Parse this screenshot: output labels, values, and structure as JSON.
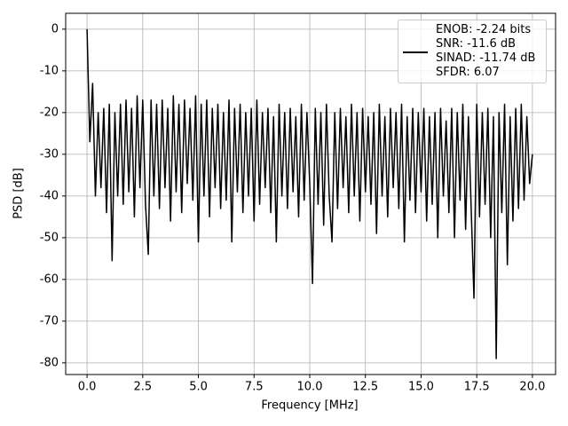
{
  "chart_data": {
    "type": "line",
    "xlabel": "Frequency [MHz]",
    "ylabel": "PSD [dB]",
    "x": [
      0,
      0.125,
      0.25,
      0.375,
      0.5,
      0.625,
      0.75,
      0.875,
      1,
      1.125,
      1.25,
      1.375,
      1.5,
      1.625,
      1.75,
      1.875,
      2,
      2.125,
      2.25,
      2.375,
      2.5,
      2.625,
      2.75,
      2.875,
      3,
      3.125,
      3.25,
      3.375,
      3.5,
      3.625,
      3.75,
      3.875,
      4,
      4.125,
      4.25,
      4.375,
      4.5,
      4.625,
      4.75,
      4.875,
      5,
      5.125,
      5.25,
      5.375,
      5.5,
      5.625,
      5.75,
      5.875,
      6,
      6.125,
      6.25,
      6.375,
      6.5,
      6.625,
      6.75,
      6.875,
      7,
      7.125,
      7.25,
      7.375,
      7.5,
      7.625,
      7.75,
      7.875,
      8,
      8.125,
      8.25,
      8.375,
      8.5,
      8.625,
      8.75,
      8.875,
      9,
      9.125,
      9.25,
      9.375,
      9.5,
      9.625,
      9.75,
      9.875,
      10,
      10.125,
      10.25,
      10.375,
      10.5,
      10.625,
      10.75,
      10.875,
      11,
      11.125,
      11.25,
      11.375,
      11.5,
      11.625,
      11.75,
      11.875,
      12,
      12.125,
      12.25,
      12.375,
      12.5,
      12.625,
      12.75,
      12.875,
      13,
      13.125,
      13.25,
      13.375,
      13.5,
      13.625,
      13.75,
      13.875,
      14,
      14.125,
      14.25,
      14.375,
      14.5,
      14.625,
      14.75,
      14.875,
      15,
      15.125,
      15.25,
      15.375,
      15.5,
      15.625,
      15.75,
      15.875,
      16,
      16.125,
      16.25,
      16.375,
      16.5,
      16.625,
      16.75,
      16.875,
      17,
      17.125,
      17.25,
      17.375,
      17.5,
      17.625,
      17.75,
      17.875,
      18,
      18.125,
      18.25,
      18.375,
      18.5,
      18.625,
      18.75,
      18.875,
      19,
      19.125,
      19.25,
      19.375,
      19.5,
      19.625,
      19.75,
      19.875,
      20
    ],
    "series": [
      {
        "name": "ENOB: -2.24 bits\nSNR: -11.6 dB\nSINAD: -11.74 dB\nSFDR: 6.07",
        "color": "#000000",
        "values": [
          0,
          -27,
          -13,
          -40,
          -20,
          -38,
          -19,
          -44,
          -18,
          -55.5,
          -20,
          -40,
          -18,
          -42,
          -17,
          -39,
          -19,
          -45,
          -16,
          -38,
          -17,
          -42,
          -54,
          -17,
          -40,
          -18,
          -43,
          -17,
          -38,
          -19,
          -46,
          -16,
          -39,
          -18,
          -44,
          -17,
          -37,
          -19,
          -41,
          -16,
          -51,
          -18,
          -40,
          -17,
          -45,
          -19,
          -38,
          -18,
          -43,
          -20,
          -41,
          -17,
          -51,
          -19,
          -39,
          -18,
          -44,
          -20,
          -40,
          -19,
          -46,
          -17,
          -42,
          -20,
          -38,
          -19,
          -44,
          -21,
          -51,
          -18,
          -40,
          -20,
          -43,
          -19,
          -39,
          -21,
          -45,
          -18,
          -41,
          -20,
          -37,
          -61,
          -19,
          -42,
          -20,
          -47,
          -18,
          -40,
          -51,
          -20,
          -43,
          -19,
          -38,
          -21,
          -44,
          -18,
          -40,
          -20,
          -46,
          -19,
          -39,
          -21,
          -42,
          -20,
          -49,
          -18,
          -40,
          -21,
          -45,
          -19,
          -38,
          -20,
          -43,
          -18,
          -51,
          -21,
          -41,
          -19,
          -44,
          -20,
          -39,
          -19,
          -46,
          -21,
          -42,
          -20,
          -50,
          -19,
          -40,
          -22,
          -44,
          -19,
          -50,
          -20,
          -41,
          -18,
          -48,
          -21,
          -43,
          -64.5,
          -18,
          -45,
          -20,
          -42,
          -19,
          -50,
          -21,
          -79,
          -20,
          -44,
          -18,
          -56.5,
          -21,
          -46,
          -19,
          -43,
          -18,
          -41,
          -21,
          -37,
          -30
        ]
      }
    ],
    "xlim": [
      -0.96,
      21.04
    ],
    "ylim": [
      -82.8,
      3.8
    ],
    "xticks": [
      {
        "value": 0,
        "label": "0.0"
      },
      2.5,
      {
        "value": 5,
        "label": "5.0"
      },
      7.5,
      {
        "value": 10,
        "label": "10.0"
      },
      12.5,
      {
        "value": 15,
        "label": "15.0"
      },
      17.5,
      {
        "value": 20,
        "label": "20.0"
      }
    ],
    "yticks": [
      0,
      -10,
      -20,
      -30,
      -40,
      -50,
      -60,
      -70,
      -80
    ],
    "grid": true,
    "legend": "upper right"
  }
}
